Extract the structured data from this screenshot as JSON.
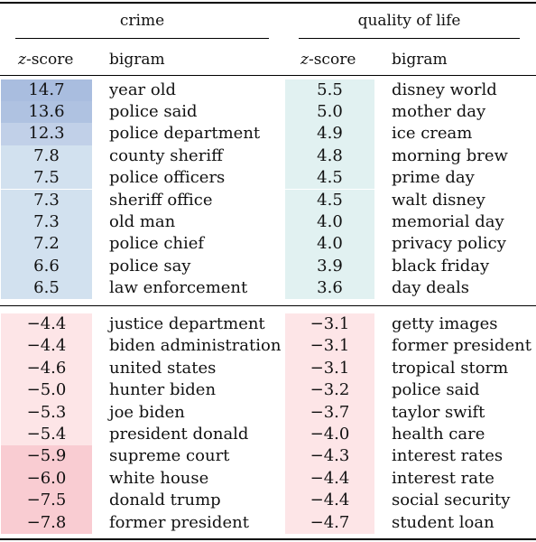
{
  "headers": {
    "crime": "crime",
    "qol": "quality of life",
    "z_label": "z",
    "z_suffix": "-score",
    "bigram": "bigram"
  },
  "crime": {
    "top": [
      {
        "z": "14.7",
        "bigram": "year old",
        "color": "#a9bddf"
      },
      {
        "z": "13.6",
        "bigram": "police said",
        "color": "#afc2e1"
      },
      {
        "z": "12.3",
        "bigram": "police department",
        "color": "#c1d0e8"
      },
      {
        "z": "7.8",
        "bigram": "county sheriff",
        "color": "#d2e1ef"
      },
      {
        "z": "7.5",
        "bigram": "police officers",
        "color": "#d2e1ef"
      },
      {
        "z": "7.3",
        "bigram": "sheriff office",
        "color": "#d2e1ef"
      },
      {
        "z": "7.3",
        "bigram": "old man",
        "color": "#d2e1ef"
      },
      {
        "z": "7.2",
        "bigram": "police chief",
        "color": "#d2e1ef"
      },
      {
        "z": "6.6",
        "bigram": "police say",
        "color": "#d2e1ef"
      },
      {
        "z": "6.5",
        "bigram": "law enforcement",
        "color": "#d2e1ef"
      }
    ],
    "bottom": [
      {
        "z": "−4.4",
        "bigram": "justice department",
        "color": "#fde5e7"
      },
      {
        "z": "−4.4",
        "bigram": "biden administration",
        "color": "#fde5e7"
      },
      {
        "z": "−4.6",
        "bigram": "united states",
        "color": "#fde5e7"
      },
      {
        "z": "−5.0",
        "bigram": "hunter biden",
        "color": "#fde5e7"
      },
      {
        "z": "−5.3",
        "bigram": "joe biden",
        "color": "#fde5e7"
      },
      {
        "z": "−5.4",
        "bigram": "president donald",
        "color": "#fde5e7"
      },
      {
        "z": "−5.9",
        "bigram": "supreme court",
        "color": "#f9ccd2"
      },
      {
        "z": "−6.0",
        "bigram": "white house",
        "color": "#f9ccd2"
      },
      {
        "z": "−7.5",
        "bigram": "donald trump",
        "color": "#f9ccd2"
      },
      {
        "z": "−7.8",
        "bigram": "former president",
        "color": "#f9ccd2"
      }
    ]
  },
  "qol": {
    "top": [
      {
        "z": "5.5",
        "bigram": "disney world",
        "color": "#e1f1f1"
      },
      {
        "z": "5.0",
        "bigram": "mother day",
        "color": "#e1f1f1"
      },
      {
        "z": "4.9",
        "bigram": "ice cream",
        "color": "#e1f1f1"
      },
      {
        "z": "4.8",
        "bigram": "morning brew",
        "color": "#e1f1f1"
      },
      {
        "z": "4.5",
        "bigram": "prime day",
        "color": "#e1f1f1"
      },
      {
        "z": "4.5",
        "bigram": "walt disney",
        "color": "#e1f1f1"
      },
      {
        "z": "4.0",
        "bigram": "memorial day",
        "color": "#e1f1f1"
      },
      {
        "z": "4.0",
        "bigram": "privacy policy",
        "color": "#e1f1f1"
      },
      {
        "z": "3.9",
        "bigram": "black friday",
        "color": "#e1f1f1"
      },
      {
        "z": "3.6",
        "bigram": "day deals",
        "color": "#e1f1f1"
      }
    ],
    "bottom": [
      {
        "z": "−3.1",
        "bigram": "getty images",
        "color": "#fde5e7"
      },
      {
        "z": "−3.1",
        "bigram": "former president",
        "color": "#fde5e7"
      },
      {
        "z": "−3.1",
        "bigram": "tropical storm",
        "color": "#fde5e7"
      },
      {
        "z": "−3.2",
        "bigram": "police said",
        "color": "#fde5e7"
      },
      {
        "z": "−3.7",
        "bigram": "taylor swift",
        "color": "#fde5e7"
      },
      {
        "z": "−4.0",
        "bigram": "health care",
        "color": "#fde5e7"
      },
      {
        "z": "−4.3",
        "bigram": "interest rates",
        "color": "#fde5e7"
      },
      {
        "z": "−4.4",
        "bigram": "interest rate",
        "color": "#fde5e7"
      },
      {
        "z": "−4.4",
        "bigram": "social security",
        "color": "#fde5e7"
      },
      {
        "z": "−4.7",
        "bigram": "student loan",
        "color": "#fde5e7"
      }
    ]
  }
}
